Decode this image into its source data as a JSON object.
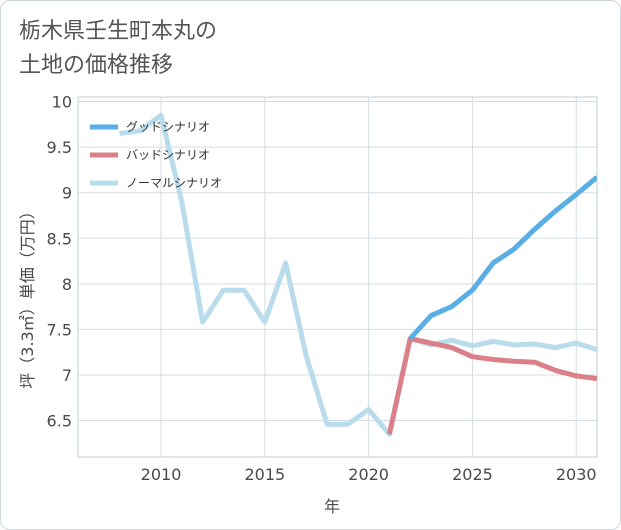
{
  "title_line1": "栃木県壬生町本丸の",
  "title_line2": "土地の価格推移",
  "chart_data": {
    "type": "line",
    "title": "栃木県壬生町本丸の土地の価格推移",
    "xlabel": "年",
    "ylabel": "坪（3.3㎡）単価（万円）",
    "xlim": [
      2006,
      2031
    ],
    "ylim": [
      6.1,
      10.05
    ],
    "xticks": [
      2010,
      2015,
      2020,
      2025,
      2030
    ],
    "yticks": [
      6.5,
      7,
      7.5,
      8,
      8.5,
      9,
      9.5,
      10
    ],
    "ytick_labels": [
      "6.5",
      "7",
      "7.5",
      "8",
      "8.5",
      "9",
      "9.5",
      "10"
    ],
    "grid": true,
    "legend_position": "top-left",
    "series": [
      {
        "name": "グッドシナリオ",
        "color": "#5aaee6",
        "x": [
          2022,
          2023,
          2024,
          2025,
          2026,
          2027,
          2028,
          2029,
          2030,
          2031
        ],
        "y": [
          7.4,
          7.65,
          7.75,
          7.93,
          8.23,
          8.38,
          8.6,
          8.8,
          8.98,
          9.17
        ]
      },
      {
        "name": "バッドシナリオ",
        "color": "#db8088",
        "x": [
          2021,
          2022,
          2023,
          2024,
          2025,
          2026,
          2027,
          2028,
          2029,
          2030,
          2031
        ],
        "y": [
          6.35,
          7.4,
          7.35,
          7.3,
          7.2,
          7.17,
          7.15,
          7.14,
          7.05,
          6.99,
          6.96
        ]
      },
      {
        "name": "ノーマルシナリオ",
        "color": "#b9dcec",
        "x": [
          2008,
          2009,
          2010,
          2011,
          2012,
          2013,
          2014,
          2015,
          2016,
          2017,
          2018,
          2019,
          2020,
          2021,
          2022,
          2023,
          2024,
          2025,
          2026,
          2027,
          2028,
          2029,
          2030,
          2031
        ],
        "y": [
          9.65,
          9.68,
          9.85,
          8.9,
          7.58,
          7.93,
          7.93,
          7.58,
          8.23,
          7.2,
          6.46,
          6.46,
          6.62,
          6.35,
          7.4,
          7.33,
          7.38,
          7.32,
          7.37,
          7.33,
          7.34,
          7.3,
          7.35,
          7.28
        ]
      }
    ]
  }
}
